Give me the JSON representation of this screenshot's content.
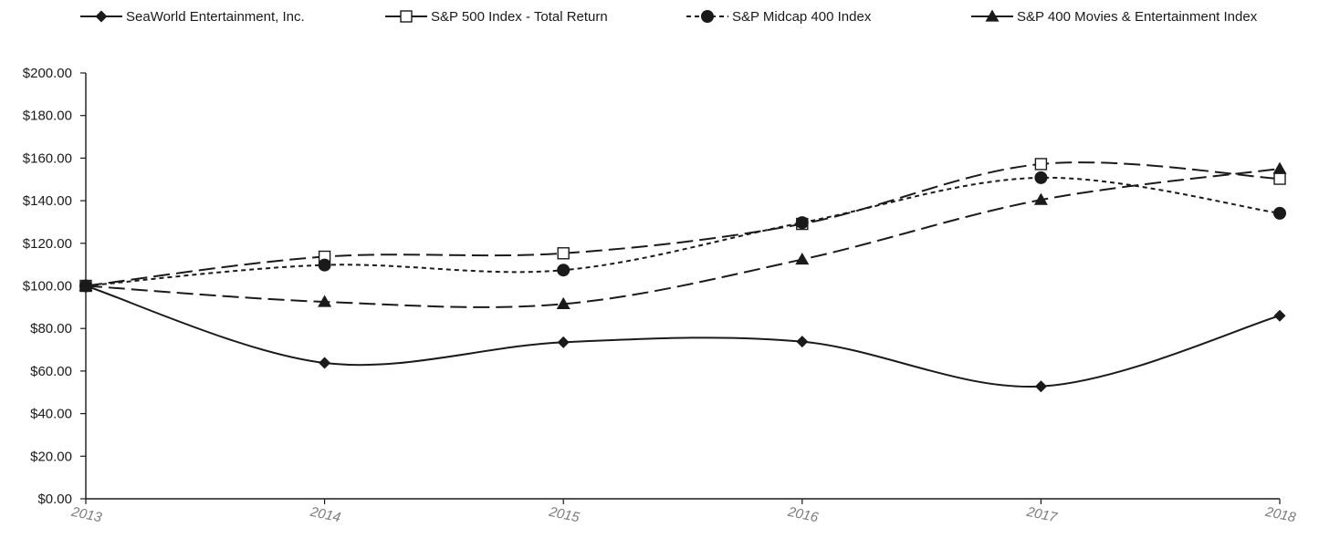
{
  "chart_data": {
    "type": "line",
    "title": "",
    "xlabel": "",
    "ylabel": "",
    "categories": [
      "2013",
      "2014",
      "2015",
      "2016",
      "2017",
      "2018"
    ],
    "ylim": [
      0,
      200
    ],
    "yticks": [
      "$0.00",
      "$20.00",
      "$40.00",
      "$60.00",
      "$80.00",
      "$100.00",
      "$120.00",
      "$140.00",
      "$160.00",
      "$180.00",
      "$200.00"
    ],
    "grid": false,
    "legend_position": "top",
    "series": [
      {
        "name": "SeaWorld Entertainment, Inc.",
        "values": [
          100,
          63.8,
          73.5,
          73.8,
          52.8,
          86
        ],
        "marker": "diamond",
        "dash": "solid",
        "color": "#1a1a1a"
      },
      {
        "name": "S&P 500 Index - Total Return",
        "values": [
          100,
          113.7,
          115.3,
          129.1,
          157.2,
          150.3
        ],
        "marker": "square-open",
        "dash": "long-dash",
        "color": "#1a1a1a"
      },
      {
        "name": "S&P Midcap 400 Index",
        "values": [
          100,
          109.8,
          107.4,
          129.7,
          150.8,
          134.1
        ],
        "marker": "circle",
        "dash": "short-dash",
        "color": "#1a1a1a"
      },
      {
        "name": "S&P 400 Movies & Entertainment Index",
        "values": [
          100,
          92.5,
          91.5,
          112.4,
          140.4,
          155
        ],
        "marker": "triangle",
        "dash": "long-dash",
        "color": "#1a1a1a"
      }
    ]
  }
}
